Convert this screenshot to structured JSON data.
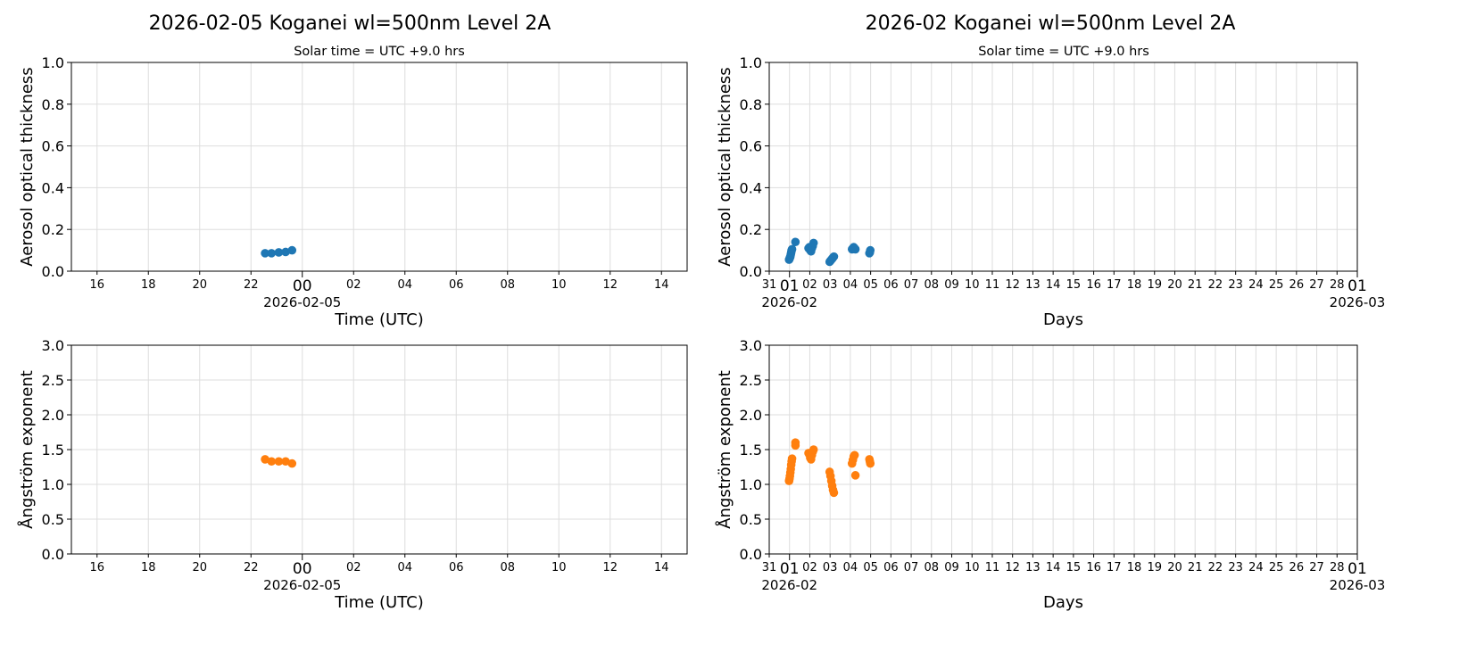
{
  "colors": {
    "aot": "#1f77b4",
    "ae": "#ff7f0e",
    "grid": "#dddddd"
  },
  "figures": [
    {
      "title": "2026-02-05  Koganei  wl=500nm  Level 2A",
      "subtitle": "Solar time = UTC +9.0 hrs"
    },
    {
      "title": "2026-02  Koganei  wl=500nm  Level 2A",
      "subtitle": "Solar time = UTC +9.0 hrs"
    }
  ],
  "chart_data": [
    {
      "type": "scatter",
      "panel": "daily-aot",
      "xlabel": "Time (UTC)",
      "ylabel": "Aerosol optical thickness",
      "xlim": [
        "2026-02-04T15:00",
        "2026-02-05T15:00"
      ],
      "ylim": [
        0,
        1.0
      ],
      "yticks": [
        "0.0",
        "0.2",
        "0.4",
        "0.6",
        "0.8",
        "1.0"
      ],
      "xticks": [
        {
          "t": "2026-02-04T16:00",
          "label": "16"
        },
        {
          "t": "2026-02-04T18:00",
          "label": "18"
        },
        {
          "t": "2026-02-04T20:00",
          "label": "20"
        },
        {
          "t": "2026-02-04T22:00",
          "label": "22"
        },
        {
          "t": "2026-02-05T00:00",
          "label": "00",
          "sub": "2026-02-05",
          "major": true
        },
        {
          "t": "2026-02-05T02:00",
          "label": "02"
        },
        {
          "t": "2026-02-05T04:00",
          "label": "04"
        },
        {
          "t": "2026-02-05T06:00",
          "label": "06"
        },
        {
          "t": "2026-02-05T08:00",
          "label": "08"
        },
        {
          "t": "2026-02-05T10:00",
          "label": "10"
        },
        {
          "t": "2026-02-05T12:00",
          "label": "12"
        },
        {
          "t": "2026-02-05T14:00",
          "label": "14"
        }
      ],
      "grid": true,
      "color": "aot",
      "points": [
        [
          "2026-02-04T22:33",
          0.086
        ],
        [
          "2026-02-04T22:48",
          0.086
        ],
        [
          "2026-02-04T23:05",
          0.09
        ],
        [
          "2026-02-04T23:21",
          0.092
        ],
        [
          "2026-02-04T23:36",
          0.1
        ]
      ]
    },
    {
      "type": "scatter",
      "panel": "monthly-aot",
      "xlabel": "Days",
      "ylabel": "Aerosol optical thickness",
      "xlim": [
        "2026-01-31T00:00",
        "2026-03-01T00:00"
      ],
      "ylim": [
        0,
        1.0
      ],
      "yticks": [
        "0.0",
        "0.2",
        "0.4",
        "0.6",
        "0.8",
        "1.0"
      ],
      "xticks": "days",
      "grid": true,
      "color": "aot",
      "points": [
        [
          "2026-01-31T23:30",
          0.055
        ],
        [
          "2026-02-01T00:00",
          0.06
        ],
        [
          "2026-02-01T00:30",
          0.065
        ],
        [
          "2026-02-01T01:00",
          0.07
        ],
        [
          "2026-02-01T01:30",
          0.08
        ],
        [
          "2026-02-01T02:00",
          0.09
        ],
        [
          "2026-02-01T02:30",
          0.1
        ],
        [
          "2026-02-01T03:00",
          0.105
        ],
        [
          "2026-02-01T07:00",
          0.14
        ],
        [
          "2026-02-01T22:30",
          0.11
        ],
        [
          "2026-02-01T23:30",
          0.115
        ],
        [
          "2026-02-02T00:30",
          0.1
        ],
        [
          "2026-02-02T01:30",
          0.095
        ],
        [
          "2026-02-02T02:30",
          0.11
        ],
        [
          "2026-02-02T03:30",
          0.12
        ],
        [
          "2026-02-02T04:30",
          0.135
        ],
        [
          "2026-02-02T23:30",
          0.045
        ],
        [
          "2026-02-03T00:30",
          0.05
        ],
        [
          "2026-02-03T01:30",
          0.055
        ],
        [
          "2026-02-03T02:30",
          0.06
        ],
        [
          "2026-02-03T03:30",
          0.065
        ],
        [
          "2026-02-03T04:30",
          0.07
        ],
        [
          "2026-02-04T02:00",
          0.105
        ],
        [
          "2026-02-04T03:00",
          0.11
        ],
        [
          "2026-02-04T04:00",
          0.115
        ],
        [
          "2026-02-04T05:00",
          0.11
        ],
        [
          "2026-02-04T06:00",
          0.105
        ],
        [
          "2026-02-04T22:33",
          0.086
        ],
        [
          "2026-02-04T23:05",
          0.09
        ],
        [
          "2026-02-04T23:36",
          0.1
        ]
      ]
    },
    {
      "type": "scatter",
      "panel": "daily-ae",
      "xlabel": "Time (UTC)",
      "ylabel": "Ångström exponent",
      "xlim": [
        "2026-02-04T15:00",
        "2026-02-05T15:00"
      ],
      "ylim": [
        0,
        3.0
      ],
      "yticks": [
        "0.0",
        "0.5",
        "1.0",
        "1.5",
        "2.0",
        "2.5",
        "3.0"
      ],
      "xticks": "same-as-daily-aot",
      "grid": true,
      "color": "ae",
      "points": [
        [
          "2026-02-04T22:33",
          1.36
        ],
        [
          "2026-02-04T22:48",
          1.33
        ],
        [
          "2026-02-04T23:05",
          1.33
        ],
        [
          "2026-02-04T23:21",
          1.33
        ],
        [
          "2026-02-04T23:36",
          1.3
        ]
      ]
    },
    {
      "type": "scatter",
      "panel": "monthly-ae",
      "xlabel": "Days",
      "ylabel": "Ångström exponent",
      "xlim": [
        "2026-01-31T00:00",
        "2026-03-01T00:00"
      ],
      "ylim": [
        0,
        3.0
      ],
      "yticks": [
        "0.0",
        "0.5",
        "1.0",
        "1.5",
        "2.0",
        "2.5",
        "3.0"
      ],
      "xticks": "days",
      "grid": true,
      "color": "ae",
      "points": [
        [
          "2026-01-31T23:30",
          1.05
        ],
        [
          "2026-02-01T00:00",
          1.08
        ],
        [
          "2026-02-01T00:30",
          1.12
        ],
        [
          "2026-02-01T01:00",
          1.17
        ],
        [
          "2026-02-01T01:30",
          1.22
        ],
        [
          "2026-02-01T02:00",
          1.28
        ],
        [
          "2026-02-01T02:30",
          1.33
        ],
        [
          "2026-02-01T03:00",
          1.37
        ],
        [
          "2026-02-01T07:00",
          1.56
        ],
        [
          "2026-02-01T07:00",
          1.6
        ],
        [
          "2026-02-01T22:30",
          1.45
        ],
        [
          "2026-02-01T23:30",
          1.43
        ],
        [
          "2026-02-02T00:30",
          1.38
        ],
        [
          "2026-02-02T01:30",
          1.36
        ],
        [
          "2026-02-02T02:30",
          1.42
        ],
        [
          "2026-02-02T03:30",
          1.47
        ],
        [
          "2026-02-02T04:30",
          1.5
        ],
        [
          "2026-02-02T23:30",
          1.18
        ],
        [
          "2026-02-03T00:30",
          1.12
        ],
        [
          "2026-02-03T01:30",
          1.05
        ],
        [
          "2026-02-03T02:30",
          0.98
        ],
        [
          "2026-02-03T03:30",
          0.92
        ],
        [
          "2026-02-03T04:30",
          0.88
        ],
        [
          "2026-02-04T02:00",
          1.3
        ],
        [
          "2026-02-04T03:00",
          1.35
        ],
        [
          "2026-02-04T04:00",
          1.4
        ],
        [
          "2026-02-04T05:00",
          1.42
        ],
        [
          "2026-02-04T06:00",
          1.13
        ],
        [
          "2026-02-04T22:33",
          1.36
        ],
        [
          "2026-02-04T23:05",
          1.33
        ],
        [
          "2026-02-04T23:36",
          1.3
        ]
      ]
    }
  ],
  "day_ticks": {
    "labels": [
      "31",
      "01",
      "02",
      "03",
      "04",
      "05",
      "06",
      "07",
      "08",
      "09",
      "10",
      "11",
      "12",
      "13",
      "14",
      "15",
      "16",
      "17",
      "18",
      "19",
      "20",
      "21",
      "22",
      "23",
      "24",
      "25",
      "26",
      "27",
      "28",
      "01"
    ],
    "subs": {
      "1": "2026-02",
      "29": "2026-03"
    }
  }
}
